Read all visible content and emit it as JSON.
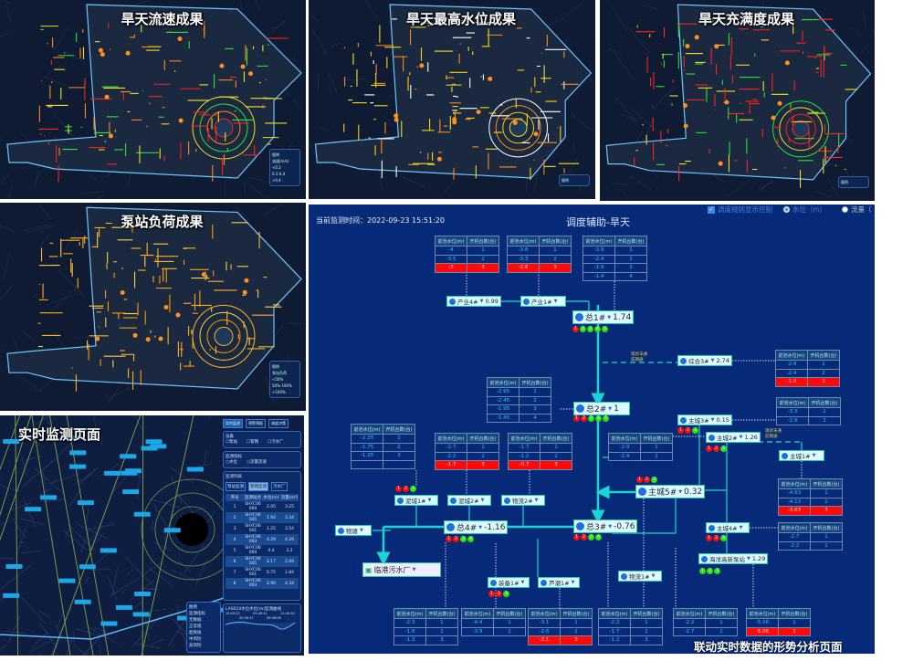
{
  "maps": [
    {
      "title": "旱天流速成果",
      "palette": [
        "#ff2020",
        "#ff8a1a",
        "#2ee03a",
        "#f0e020"
      ],
      "legend": [
        "图例",
        "流速(m/s)",
        "<0.2",
        "0.2-0.4",
        ">0.4"
      ]
    },
    {
      "title": "旱天最高水位成果",
      "palette": [
        "#f0e020",
        "#ffd000",
        "#ff8a1a",
        "#ffffff"
      ],
      "legend": [
        "图例"
      ]
    },
    {
      "title": "旱天充满度成果",
      "palette": [
        "#ff2020",
        "#ff2020",
        "#f0e020",
        "#2ee03a"
      ],
      "legend": [
        "图例"
      ]
    },
    {
      "title": "泵站负荷成果",
      "palette": [
        "#ffb020",
        "#ff9a00",
        "#ffd040",
        "#ffb020"
      ],
      "legend": [
        "图例",
        "泵站负荷",
        "<50%",
        "50%-100%",
        ">100%"
      ]
    }
  ],
  "monitor": {
    "title": "实时监测页面",
    "tabs": [
      "实时监测",
      "预警预报",
      "调度决策"
    ],
    "panels": {
      "device": "设备",
      "device_opts": [
        "泵站",
        "管网",
        "污水厂"
      ],
      "type": "监测指标",
      "type_opts": [
        "水位",
        "流量流速"
      ],
      "list": "监测列表",
      "list_tabs": [
        "泵站监测",
        "管网监测",
        "污水厂"
      ],
      "cols": [
        "序号",
        "监测站点",
        "水位(m)",
        "流量(m³)"
      ]
    },
    "rows": [
      [
        "1",
        "SHYC06 004",
        "2.05",
        "3.25"
      ],
      [
        "2",
        "SHYC06 005",
        "1.92",
        "3.34"
      ],
      [
        "3",
        "SHYC06 001",
        "1.25",
        "3.54"
      ],
      [
        "4",
        "SHYC06 003",
        "4.29",
        "4.29"
      ],
      [
        "5",
        "SHYC06 004",
        "4.4",
        "3.2"
      ],
      [
        "6",
        "SHYC06 005",
        "2.17",
        "2.69"
      ],
      [
        "7",
        "SHYC06 001",
        "0.75",
        "1.84"
      ],
      [
        "8",
        "SHYC06 003",
        "2.90",
        "4.34"
      ]
    ],
    "legend": [
      "图例",
      "监测指标",
      "无数据",
      "正常值",
      "超限值",
      "中风险",
      "高风险"
    ],
    "chart_title": "LAS024水位水位(m)监测曲线",
    "chart_ticks": [
      "15:03:22",
      "20:26:47",
      "05:26:41",
      "09:36:06",
      "11:40:30"
    ]
  },
  "main": {
    "time_label": "当前监测时间：",
    "time": "2022-09-23 15:51:20",
    "title": "调度辅助-旱天",
    "controls": {
      "rule": "调度规则显示控制",
      "level": "水位（m）",
      "flow": "流量（"
    },
    "header": [
      "前池水位(m)",
      "开机台数(台)"
    ],
    "tables": [
      [
        [
          "-4",
          "1"
        ],
        [
          "-3.5",
          "2"
        ],
        [
          "-3",
          "3",
          "red"
        ]
      ],
      [
        [
          "-3.8",
          "1"
        ],
        [
          "-3.3",
          "2"
        ],
        [
          "-2.8",
          "3",
          "red"
        ]
      ],
      [
        [
          "-2.9",
          "1"
        ],
        [
          "-2.4",
          "2"
        ],
        [
          "-1.9",
          "3"
        ],
        [
          "-1.4",
          "4"
        ]
      ],
      [
        [
          "-2.95",
          "1"
        ],
        [
          "-2.45",
          "2"
        ],
        [
          "-1.95",
          "3"
        ],
        [
          "-1.45",
          "4"
        ]
      ],
      [
        [
          "-2.9",
          "1"
        ],
        [
          "-2.4",
          "2"
        ],
        [
          "-1.9",
          "3",
          "red"
        ]
      ],
      [
        [
          "-3.3",
          "1"
        ],
        [
          "-2.8",
          "2"
        ]
      ],
      [
        [
          "-2.25",
          "1"
        ],
        [
          "-1.75",
          "2"
        ],
        [
          "-1.25",
          "3"
        ],
        [
          "",
          ""
        ]
      ],
      [
        [
          "-2.7",
          "1"
        ],
        [
          "-2.2",
          "2"
        ],
        [
          "-1.7",
          "3",
          "red"
        ]
      ],
      [
        [
          "-1.7",
          "1"
        ],
        [
          "-1.2",
          "2"
        ],
        [
          "-0.7",
          "3",
          "red"
        ]
      ],
      [
        [
          "-2.9",
          "1"
        ],
        [
          "-2.4",
          "2"
        ]
      ],
      [
        [
          "-4.63",
          "1"
        ],
        [
          "-4.13",
          "2"
        ],
        [
          "-3.63",
          "3",
          "red"
        ]
      ],
      [
        [
          "-2.7",
          "1"
        ],
        [
          "-2.2",
          "2"
        ]
      ],
      [
        [
          "-2.3",
          "1"
        ],
        [
          "-1.8",
          "2"
        ],
        [
          "-1.3",
          "3"
        ]
      ],
      [
        [
          "-4.4",
          "1"
        ],
        [
          "-3.9",
          "2"
        ]
      ],
      [
        [
          "-3.1",
          "1"
        ],
        [
          "-2.6",
          "2"
        ],
        [
          "-2.1",
          "3",
          "red"
        ]
      ],
      [
        [
          "-2.2",
          "1"
        ],
        [
          "-1.7",
          "2"
        ],
        [
          "-1.2",
          "3"
        ]
      ],
      [
        [
          "-2.2",
          "1"
        ],
        [
          "-1.7",
          "2"
        ]
      ],
      [
        [
          "-5.56",
          "1"
        ],
        [
          "-5.06",
          "2",
          "red"
        ]
      ]
    ],
    "stations": [
      {
        "name": "产业4#",
        "value": "0.99"
      },
      {
        "name": "产业1#",
        "value": ""
      },
      {
        "name": "总1#",
        "value": "1.74",
        "dots": "rgggg"
      },
      {
        "name": "综合3#",
        "value": "2.74"
      },
      {
        "name": "总2#",
        "value": "1",
        "dots": "rrggg"
      },
      {
        "name": "主城3#",
        "value": "0.15",
        "dots": "rrg"
      },
      {
        "name": "主城2#",
        "value": "1.26",
        "dots": "rrg"
      },
      {
        "name": "主城1#",
        "value": ""
      },
      {
        "name": "主城5#",
        "value": "0.32",
        "dots": "rrg"
      },
      {
        "name": "泥城1#",
        "value": "",
        "dots": "rrg"
      },
      {
        "name": "泥城2#",
        "value": ""
      },
      {
        "name": "物流2#",
        "value": ""
      },
      {
        "name": "物唐",
        "value": ""
      },
      {
        "name": "总4#",
        "value": "-1.16",
        "dots": "rrgg"
      },
      {
        "name": "总3#",
        "value": "-0.76",
        "dots": "rrgg"
      },
      {
        "name": "主城4#",
        "value": "",
        "dots": "rrg"
      },
      {
        "name": "海洋高新泵站",
        "value": "1.29",
        "dots": "ggg"
      },
      {
        "name": "物流1#",
        "value": ""
      },
      {
        "name": "装备1#",
        "value": "",
        "dots": "rrg"
      },
      {
        "name": "芦潮1#",
        "value": ""
      }
    ],
    "plant": "临港污水厂",
    "notes": [
      "现状未通\n前期通",
      "现状未通\n前期通"
    ],
    "caption": "联动实时数据的形势分析页面"
  },
  "colors": {
    "panel": "#062a78",
    "pipe": "#19d6d6",
    "alarm": "#ff0a0a",
    "ok": "#2ee010"
  }
}
